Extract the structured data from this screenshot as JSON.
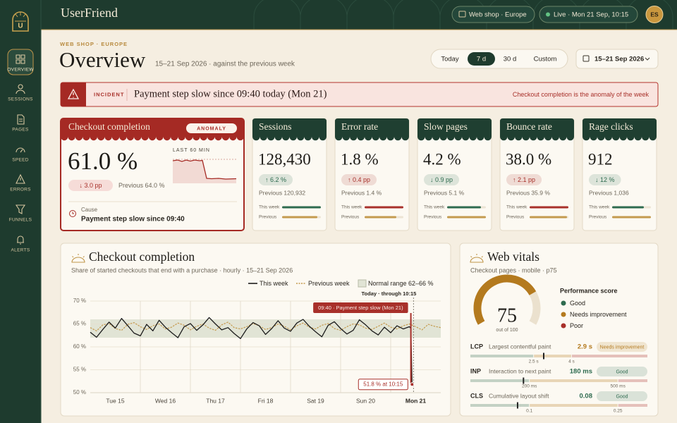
{
  "brand": "UserFriend",
  "nav": [
    "OVERVIEW",
    "SESSIONS",
    "PAGES",
    "SPEED",
    "ERRORS",
    "FUNNELS",
    "ALERTS"
  ],
  "topbar": {
    "shop": "Web shop · Europe",
    "live": "Live · Mon 21 Sep, 10:15",
    "avatar": "ES"
  },
  "header": {
    "eyebrow": "WEB SHOP · EUROPE",
    "title": "Overview",
    "subtitle": "15–21 Sep 2026 · against the previous week"
  },
  "range_tabs": [
    "Today",
    "7 d",
    "30 d",
    "Custom"
  ],
  "date_range": "15–21 Sep 2026",
  "incident": {
    "tag": "INCIDENT",
    "message": "Payment step slow since 09:40 today (Mon 21)",
    "note": "Checkout completion is the anomaly of the week"
  },
  "featured_kpi": {
    "title": "Checkout completion",
    "badge": "ANOMALY",
    "value": "61.0 %",
    "delta": "↓ 3.0 pp",
    "previous": "Previous 64.0 %",
    "sparkline_label": "LAST 60 MIN",
    "cause_label": "Cause",
    "cause": "Payment step slow since 09:40"
  },
  "kpi_bar_labels": [
    "This week",
    "Previous"
  ],
  "kpis": [
    {
      "title": "Sessions",
      "value": "128,430",
      "delta": "↑ 6.2 %",
      "previous": "Previous 120,932",
      "color": "#2e6b4f"
    },
    {
      "title": "Error rate",
      "value": "1.8 %",
      "delta": "↑ 0.4 pp",
      "previous": "Previous 1.4 %",
      "color": "#a8302a"
    },
    {
      "title": "Slow pages",
      "value": "4.2 %",
      "delta": "↓ 0.9 pp",
      "previous": "Previous 5.1 %",
      "color": "#2e6b4f"
    },
    {
      "title": "Bounce rate",
      "value": "38.0 %",
      "delta": "↑ 2.1 pp",
      "previous": "Previous 35.9 %",
      "color": "#a8302a"
    },
    {
      "title": "Rage clicks",
      "value": "912",
      "delta": "↓ 12 %",
      "previous": "Previous 1,036",
      "color": "#2e6b4f"
    }
  ],
  "chart_data": {
    "type": "line",
    "title": "Checkout completion",
    "subtitle": "Share of started checkouts that end with a purchase · hourly · 15–21 Sep 2026",
    "xlim": [
      0,
      168
    ],
    "xticks": [
      {
        "value": 12,
        "label": "Tue 15"
      },
      {
        "value": 36,
        "label": "Wed 16"
      },
      {
        "value": 60,
        "label": "Thu 17"
      },
      {
        "value": 84,
        "label": "Fri 18"
      },
      {
        "value": 108,
        "label": "Sat 19"
      },
      {
        "value": 132,
        "label": "Sun 20"
      },
      {
        "value": 156,
        "label": "Mon 21"
      }
    ],
    "ylim": [
      50,
      70
    ],
    "yticks": [
      {
        "value": 50,
        "label": "50 %"
      },
      {
        "value": 55,
        "label": "55 %"
      },
      {
        "value": 60,
        "label": "60 %"
      },
      {
        "value": 65,
        "label": "65 %"
      },
      {
        "value": 70,
        "label": "70 %"
      }
    ],
    "grid": true,
    "band": {
      "name": "Normal range 62–66 %",
      "range": [
        62,
        66
      ],
      "color": "#e1e4d5"
    },
    "series": [
      {
        "name": "This week",
        "color": "#1c1c1c",
        "x": [
          0,
          3,
          6,
          9,
          12,
          15,
          18,
          21,
          24,
          27,
          30,
          33,
          36,
          39,
          42,
          45,
          48,
          51,
          54,
          57,
          60,
          63,
          66,
          69,
          72,
          75,
          78,
          81,
          84,
          87,
          90,
          93,
          96,
          99,
          102,
          105,
          108,
          111,
          114,
          117,
          120,
          123,
          126,
          129,
          132,
          135,
          138,
          141,
          144,
          147,
          150,
          153,
          153.67,
          154.25
        ],
        "values": [
          63.2,
          62.1,
          63.8,
          65.4,
          64.1,
          66.2,
          64.6,
          63.0,
          62.4,
          64.9,
          63.5,
          65.8,
          64.3,
          63.1,
          62.0,
          64.4,
          65.1,
          63.6,
          64.8,
          66.4,
          65.0,
          63.7,
          64.2,
          62.9,
          61.8,
          63.9,
          65.3,
          64.6,
          62.7,
          64.0,
          65.7,
          64.1,
          63.4,
          65.2,
          66.0,
          64.5,
          63.3,
          62.2,
          64.7,
          65.5,
          64.0,
          62.8,
          63.6,
          65.9,
          64.8,
          63.5,
          62.6,
          64.3,
          63.1,
          64.6,
          63.9,
          64.4,
          64.0,
          51.8
        ]
      },
      {
        "name": "Previous week",
        "color": "#c49a4e",
        "dashed": true,
        "x": [
          0,
          3,
          6,
          9,
          12,
          15,
          18,
          21,
          24,
          27,
          30,
          33,
          36,
          39,
          42,
          45,
          48,
          51,
          54,
          57,
          60,
          63,
          66,
          69,
          72,
          75,
          78,
          81,
          84,
          87,
          90,
          93,
          96,
          99,
          102,
          105,
          108,
          111,
          114,
          117,
          120,
          123,
          126,
          129,
          132,
          135,
          138,
          141,
          144,
          147,
          150,
          153,
          156,
          159,
          162,
          165,
          168
        ],
        "values": [
          64.2,
          63.5,
          64.8,
          65.1,
          64.0,
          63.6,
          64.9,
          65.3,
          64.4,
          63.8,
          64.6,
          65.0,
          63.9,
          64.3,
          65.2,
          64.7,
          63.7,
          64.5,
          65.0,
          64.1,
          63.6,
          64.8,
          65.4,
          64.2,
          63.9,
          64.4,
          65.1,
          64.6,
          63.8,
          64.2,
          65.0,
          64.5,
          63.7,
          64.6,
          65.2,
          64.3,
          63.9,
          64.7,
          65.1,
          64.0,
          63.6,
          64.4,
          65.0,
          64.8,
          64.1,
          63.8,
          64.5,
          65.2,
          64.3,
          63.9,
          64.6,
          65.0,
          64.4,
          63.7,
          64.9,
          64.5,
          64.2
        ]
      }
    ],
    "annotations": {
      "now_label": "Today · through 10:15",
      "incident": {
        "x": 153.67,
        "label": "09:40 · Payment step slow (Mon 21)",
        "color": "#a8302a"
      },
      "last_point_label": "51.8 % at 10:15"
    }
  },
  "web_vitals": {
    "title": "Web vitals",
    "subtitle": "Checkout pages · mobile · p75",
    "gauge": {
      "type": "gauge",
      "value": 75,
      "range": [
        0,
        100
      ],
      "color": "#b47a1e",
      "caption": "out of 100"
    },
    "legend_title": "Performance score",
    "legend": [
      {
        "name": "Good",
        "color": "#2e6b4f"
      },
      {
        "name": "Needs improvement",
        "color": "#b47a1e"
      },
      {
        "name": "Poor",
        "color": "#a8302a"
      }
    ],
    "metrics": [
      {
        "key": "LCP",
        "name": "Largest contentful paint",
        "value": 2.9,
        "value_label": "2.9 s",
        "status": "Needs improvement",
        "xlim": [
          0,
          7
        ],
        "xticks": [
          {
            "value": 2.5,
            "label": "2.5 s"
          },
          {
            "value": 4,
            "label": "4 s"
          }
        ]
      },
      {
        "key": "INP",
        "name": "Interaction to next paint",
        "value": 180,
        "value_label": "180 ms",
        "status": "Good",
        "xlim": [
          0,
          600
        ],
        "xticks": [
          {
            "value": 200,
            "label": "200 ms"
          },
          {
            "value": 500,
            "label": "500 ms"
          }
        ]
      },
      {
        "key": "CLS",
        "name": "Cumulative layout shift",
        "value": 0.08,
        "status": "Good",
        "xlim": [
          0,
          0.3
        ],
        "xticks": [
          0.1,
          0.25
        ]
      }
    ]
  }
}
